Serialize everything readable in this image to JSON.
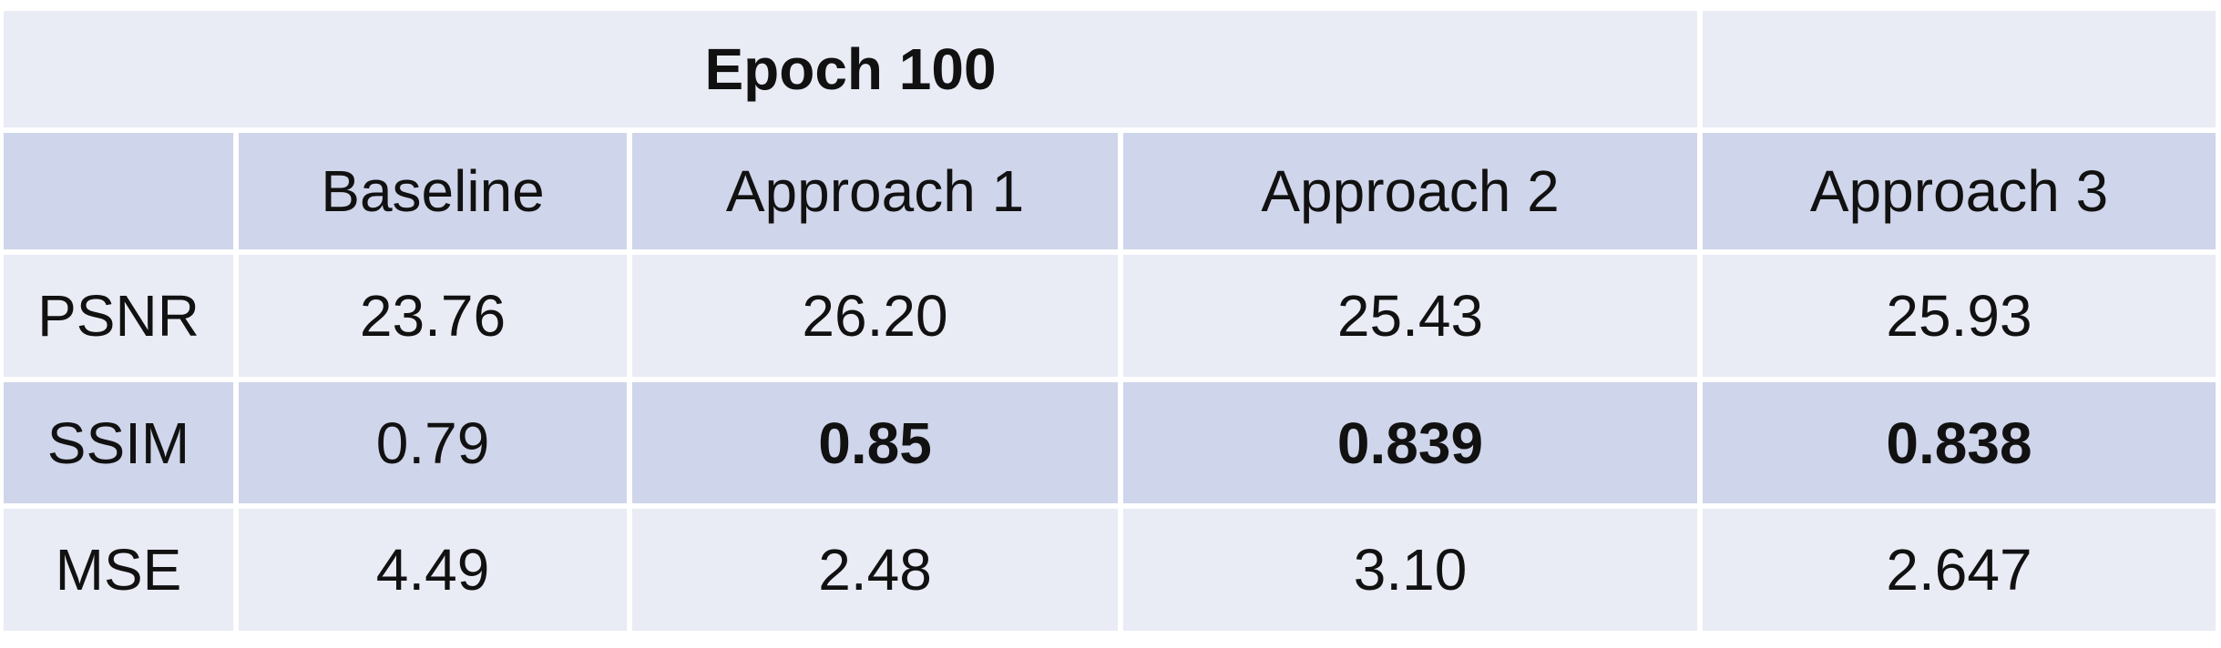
{
  "chart_data": {
    "type": "table",
    "title": "Epoch 100",
    "columns": [
      "",
      "Baseline",
      "Approach 1",
      "Approach 2",
      "Approach 3"
    ],
    "rows": [
      {
        "label": "PSNR",
        "values": [
          "23.76",
          "26.20",
          "25.43",
          "25.93"
        ],
        "bold": [
          false,
          false,
          false,
          false
        ]
      },
      {
        "label": "SSIM",
        "values": [
          "0.79",
          "0.85",
          "0.839",
          "0.838"
        ],
        "bold": [
          false,
          true,
          true,
          true
        ]
      },
      {
        "label": "MSE",
        "values": [
          "4.49",
          "2.48",
          "3.10",
          "2.647"
        ],
        "bold": [
          false,
          false,
          false,
          false
        ]
      }
    ],
    "colors": {
      "light_row": "#e9ebf5",
      "dark_row": "#cfd5ea",
      "text": "#111111",
      "grid": "#ffffff"
    }
  }
}
